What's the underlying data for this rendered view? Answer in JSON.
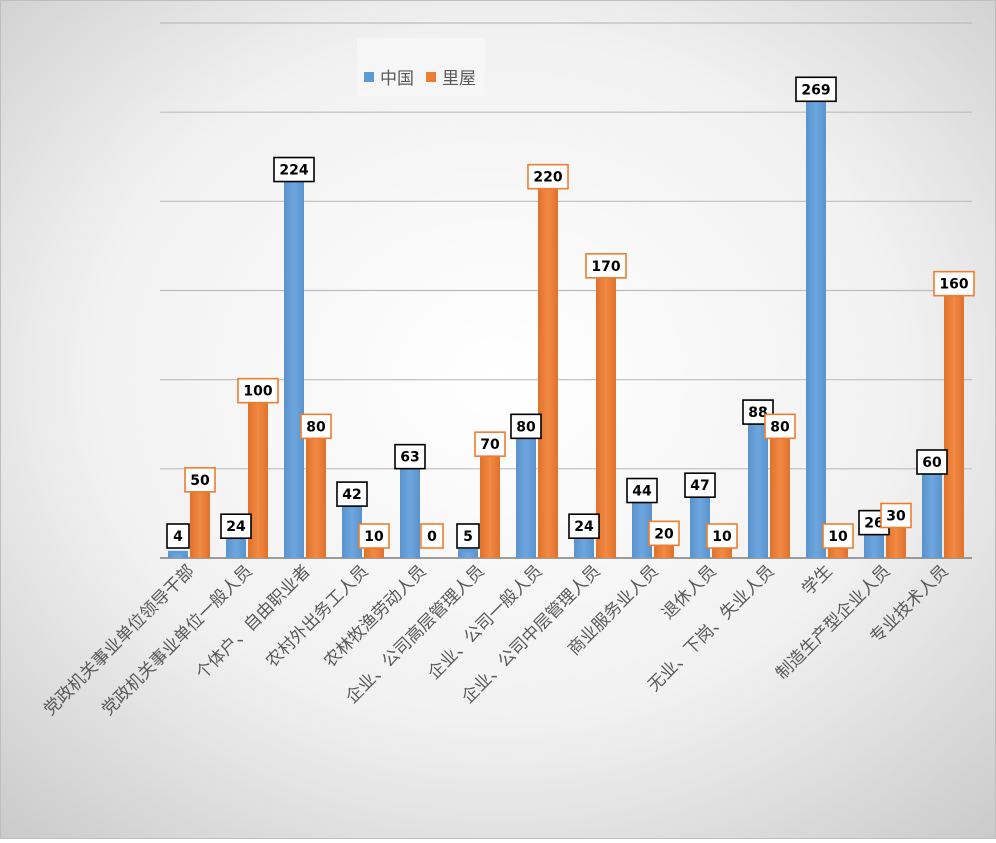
{
  "chart_data": {
    "type": "bar",
    "title": "",
    "xlabel": "",
    "ylabel": "",
    "ylim": [
      0,
      300
    ],
    "grid": true,
    "legend": "top-left",
    "categories": [
      "党政机关事业单位领导干部",
      "党政机关事业单位一般人员",
      "个体户、自由职业者",
      "农村外出务工人员",
      "农林牧渔劳动人员",
      "企业、公司高层管理人员",
      "企业、公司一般人员",
      "企业、公司中层管理人员",
      "商业服务业人员",
      "退休人员",
      "无业、下岗、失业人员",
      "学生",
      "制造生产型企业人员",
      "专业技术人员"
    ],
    "series": [
      {
        "name": "中国",
        "color": "#5b9bd5",
        "values": [
          4,
          24,
          224,
          42,
          63,
          5,
          80,
          24,
          44,
          47,
          88,
          269,
          26,
          60
        ]
      },
      {
        "name": "里屋",
        "color": "#ed7d31",
        "values": [
          50,
          100,
          80,
          10,
          0,
          70,
          220,
          170,
          20,
          10,
          80,
          10,
          30,
          160
        ]
      }
    ]
  }
}
